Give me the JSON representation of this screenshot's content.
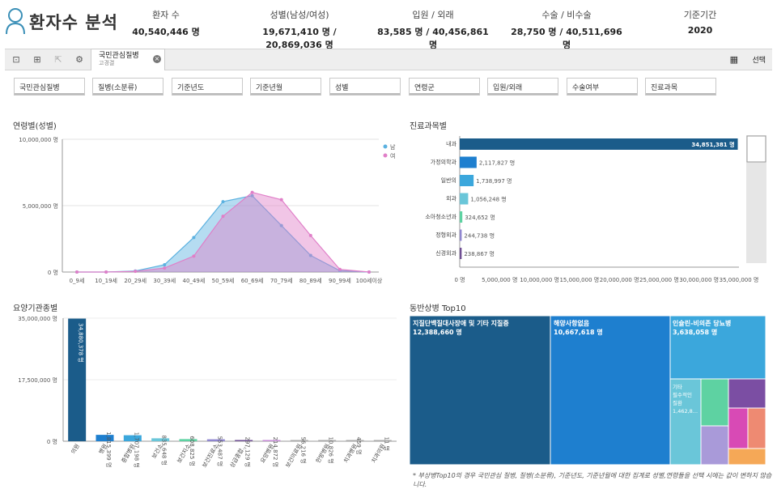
{
  "header": {
    "title": "환자수 분석",
    "stats": [
      {
        "label": "환자 수",
        "value": "40,540,446 명"
      },
      {
        "label": "성별(남성/여성)",
        "value": "19,671,410 명 / 20,869,036 명"
      },
      {
        "label": "입원 / 외래",
        "value": "83,585 명 / 40,456,861 명"
      },
      {
        "label": "수술 / 비수술",
        "value": "28,750 명 / 40,511,696 명"
      },
      {
        "label": "기준기간",
        "value": "2020"
      }
    ]
  },
  "toolbar": {
    "tab_title": "국민관심질병",
    "tab_sub": "고경결",
    "select_label": "선택",
    "icons": [
      "zoom-icon",
      "zoom-select-icon",
      "export-icon",
      "settings-icon"
    ]
  },
  "filters": [
    "국민관심질병",
    "질병(소분류)",
    "기준년도",
    "기준년월",
    "성별",
    "연령군",
    "입원/외래",
    "수술여부",
    "진료과목"
  ],
  "colors": {
    "male": "#5bb1e0",
    "female": "#e07fc8",
    "dept": "#1b5c8a",
    "accent": "#2b6fb2"
  },
  "panels": {
    "age": "연령별(성별)",
    "dept": "진료과목별",
    "inst": "요양기관종별",
    "treemap": "동반상병 Top10"
  },
  "footnote": "* 부상병Top10의 경우 국민관심 질병, 질병(소분류), 기준년도, 기준년월에 대한 집계로 성별,연령들을 선택 시에는 값이 변하지 않습니다.",
  "chart_data": [
    {
      "type": "area",
      "title": "연령별(성별)",
      "categories": [
        "0_9세",
        "10_19세",
        "20_29세",
        "30_39세",
        "40_49세",
        "50_59세",
        "60_69세",
        "70_79세",
        "80_89세",
        "90_99세",
        "100세이상"
      ],
      "series": [
        {
          "name": "남",
          "values": [
            0,
            0,
            80000,
            550000,
            2600000,
            5300000,
            5750000,
            3500000,
            1250000,
            100000,
            0
          ]
        },
        {
          "name": "여",
          "values": [
            0,
            0,
            50000,
            300000,
            1200000,
            4200000,
            6000000,
            5450000,
            2750000,
            200000,
            0
          ]
        }
      ],
      "y_ticks": [
        "10,000,000 명",
        "5,000,000 명",
        "0 명"
      ],
      "ylim": [
        0,
        10000000
      ]
    },
    {
      "type": "bar",
      "title": "진료과목별",
      "orientation": "horizontal",
      "categories": [
        "내과",
        "가정의학과",
        "일반의",
        "외과",
        "소아청소년과",
        "정형외과",
        "신경외과"
      ],
      "values": [
        34851381,
        2117827,
        1738997,
        1056248,
        324652,
        244738,
        238867
      ],
      "labels": [
        "34,851,381 명",
        "2,117,827 명",
        "1,738,997 명",
        "1,056,248 명",
        "324,652 명",
        "244,738 명",
        "238,867 명"
      ],
      "x_ticks": [
        "0 명",
        "5,000,000 명",
        "10,000,000 명",
        "15,000,000 명",
        "20,000,000 명",
        "25,000,000 명",
        "30,000,000 명",
        "35,000,000 명"
      ],
      "xlim": [
        0,
        35000000
      ]
    },
    {
      "type": "bar",
      "title": "요양기관종별",
      "categories": [
        "의원",
        "병원",
        "종합병원",
        "보건소",
        "보건지소",
        "보건진료소",
        "상급종합...",
        "요양병원",
        "보건의료원",
        "한방병원",
        "치과병원",
        "치과의원"
      ],
      "values": [
        34880378,
        1815399,
        1707198,
        835648,
        608825,
        553487,
        297129,
        214872,
        56216,
        10826,
        459,
        11
      ],
      "labels": [
        "34,880,378 명",
        "1,815,399 명",
        "1,707,198 명",
        "835,648 명",
        "608,825 명",
        "553,487 명",
        "297,129 명",
        "214,872 명",
        "56,216 명",
        "10,826 명",
        "459 명",
        "11 명"
      ],
      "y_ticks": [
        "35,000,000 명",
        "17,500,000 명",
        "0 명"
      ],
      "ylim": [
        0,
        35000000
      ]
    },
    {
      "type": "treemap",
      "title": "동반상병 Top10",
      "items": [
        {
          "name": "지질단백질대사장애 및 기타 지질증",
          "value": "12,388,660 명"
        },
        {
          "name": "해양사항없음",
          "value": "10,667,618 명"
        },
        {
          "name": "인슐린-비의존 당뇨병",
          "value": "3,638,058 명"
        },
        {
          "name": "기타 필수적인 질환",
          "value": "1,462,8..."
        }
      ]
    }
  ]
}
